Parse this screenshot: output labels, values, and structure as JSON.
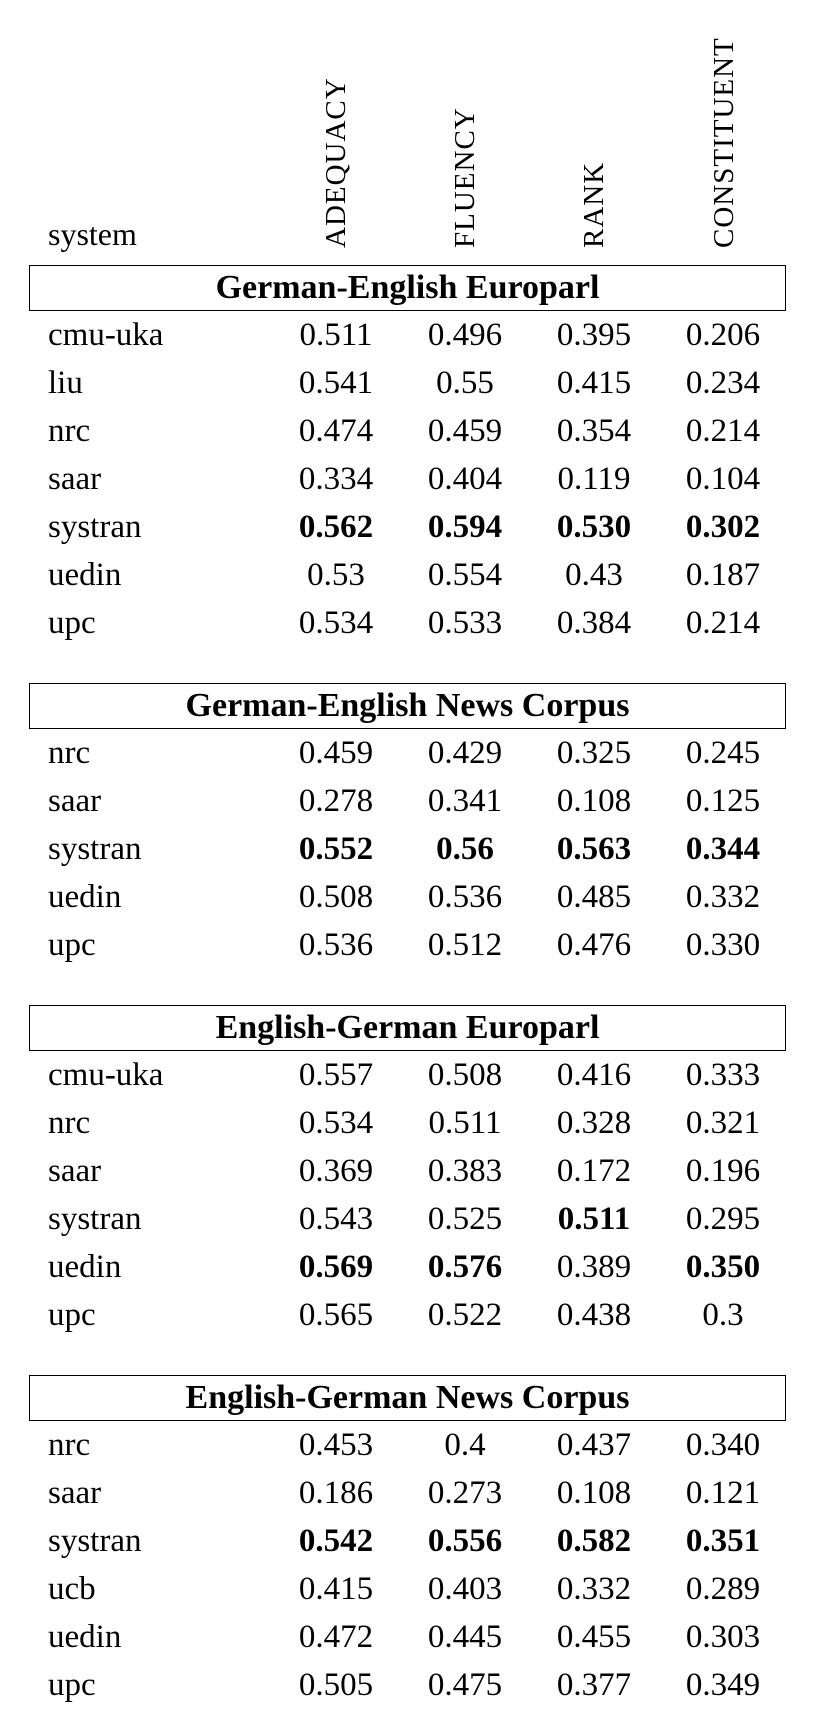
{
  "header": {
    "system_label": "system",
    "columns": [
      "ADEQUACY",
      "FLUENCY",
      "RANK",
      "CONSTITUENT"
    ]
  },
  "sections": [
    {
      "title": "German-English Europarl",
      "rows": [
        {
          "system": "cmu-uka",
          "values": [
            "0.511",
            "0.496",
            "0.395",
            "0.206"
          ],
          "bold": [
            false,
            false,
            false,
            false
          ]
        },
        {
          "system": "liu",
          "values": [
            "0.541",
            "0.55",
            "0.415",
            "0.234"
          ],
          "bold": [
            false,
            false,
            false,
            false
          ]
        },
        {
          "system": "nrc",
          "values": [
            "0.474",
            "0.459",
            "0.354",
            "0.214"
          ],
          "bold": [
            false,
            false,
            false,
            false
          ]
        },
        {
          "system": "saar",
          "values": [
            "0.334",
            "0.404",
            "0.119",
            "0.104"
          ],
          "bold": [
            false,
            false,
            false,
            false
          ]
        },
        {
          "system": "systran",
          "values": [
            "0.562",
            "0.594",
            "0.530",
            "0.302"
          ],
          "bold": [
            true,
            true,
            true,
            true
          ]
        },
        {
          "system": "uedin",
          "values": [
            "0.53",
            "0.554",
            "0.43",
            "0.187"
          ],
          "bold": [
            false,
            false,
            false,
            false
          ]
        },
        {
          "system": "upc",
          "values": [
            "0.534",
            "0.533",
            "0.384",
            "0.214"
          ],
          "bold": [
            false,
            false,
            false,
            false
          ]
        }
      ]
    },
    {
      "title": "German-English News Corpus",
      "rows": [
        {
          "system": "nrc",
          "values": [
            "0.459",
            "0.429",
            "0.325",
            "0.245"
          ],
          "bold": [
            false,
            false,
            false,
            false
          ]
        },
        {
          "system": "saar",
          "values": [
            "0.278",
            "0.341",
            "0.108",
            "0.125"
          ],
          "bold": [
            false,
            false,
            false,
            false
          ]
        },
        {
          "system": "systran",
          "values": [
            "0.552",
            "0.56",
            "0.563",
            "0.344"
          ],
          "bold": [
            true,
            true,
            true,
            true
          ]
        },
        {
          "system": "uedin",
          "values": [
            "0.508",
            "0.536",
            "0.485",
            "0.332"
          ],
          "bold": [
            false,
            false,
            false,
            false
          ]
        },
        {
          "system": "upc",
          "values": [
            "0.536",
            "0.512",
            "0.476",
            "0.330"
          ],
          "bold": [
            false,
            false,
            false,
            false
          ]
        }
      ]
    },
    {
      "title": "English-German Europarl",
      "rows": [
        {
          "system": "cmu-uka",
          "values": [
            "0.557",
            "0.508",
            "0.416",
            "0.333"
          ],
          "bold": [
            false,
            false,
            false,
            false
          ]
        },
        {
          "system": "nrc",
          "values": [
            "0.534",
            "0.511",
            "0.328",
            "0.321"
          ],
          "bold": [
            false,
            false,
            false,
            false
          ]
        },
        {
          "system": "saar",
          "values": [
            "0.369",
            "0.383",
            "0.172",
            "0.196"
          ],
          "bold": [
            false,
            false,
            false,
            false
          ]
        },
        {
          "system": "systran",
          "values": [
            "0.543",
            "0.525",
            "0.511",
            "0.295"
          ],
          "bold": [
            false,
            false,
            true,
            false
          ]
        },
        {
          "system": "uedin",
          "values": [
            "0.569",
            "0.576",
            "0.389",
            "0.350"
          ],
          "bold": [
            true,
            true,
            false,
            true
          ]
        },
        {
          "system": "upc",
          "values": [
            "0.565",
            "0.522",
            "0.438",
            "0.3"
          ],
          "bold": [
            false,
            false,
            false,
            false
          ]
        }
      ]
    },
    {
      "title": "English-German News Corpus",
      "rows": [
        {
          "system": "nrc",
          "values": [
            "0.453",
            "0.4",
            "0.437",
            "0.340"
          ],
          "bold": [
            false,
            false,
            false,
            false
          ]
        },
        {
          "system": "saar",
          "values": [
            "0.186",
            "0.273",
            "0.108",
            "0.121"
          ],
          "bold": [
            false,
            false,
            false,
            false
          ]
        },
        {
          "system": "systran",
          "values": [
            "0.542",
            "0.556",
            "0.582",
            "0.351"
          ],
          "bold": [
            true,
            true,
            true,
            true
          ]
        },
        {
          "system": "ucb",
          "values": [
            "0.415",
            "0.403",
            "0.332",
            "0.289"
          ],
          "bold": [
            false,
            false,
            false,
            false
          ]
        },
        {
          "system": "uedin",
          "values": [
            "0.472",
            "0.445",
            "0.455",
            "0.303"
          ],
          "bold": [
            false,
            false,
            false,
            false
          ]
        },
        {
          "system": "upc",
          "values": [
            "0.505",
            "0.475",
            "0.377",
            "0.349"
          ],
          "bold": [
            false,
            false,
            false,
            false
          ]
        }
      ]
    }
  ]
}
